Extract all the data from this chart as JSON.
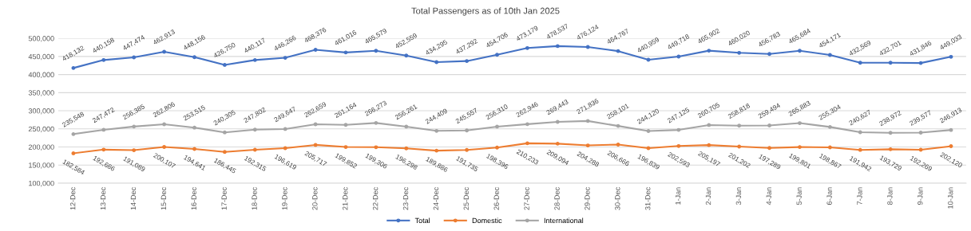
{
  "chart_data": {
    "type": "line",
    "title": "Total Passengers as of 10th Jan 2025",
    "categories": [
      "12-Dec",
      "13-Dec",
      "14-Dec",
      "15-Dec",
      "16-Dec",
      "17-Dec",
      "18-Dec",
      "19-Dec",
      "20-Dec",
      "21-Dec",
      "22-Dec",
      "23-Dec",
      "24-Dec",
      "25-Dec",
      "26-Dec",
      "27-Dec",
      "28-Dec",
      "29-Dec",
      "30-Dec",
      "31-Dec",
      "1-Jan",
      "2-Jan",
      "3-Jan",
      "4-Jan",
      "5-Jan",
      "6-Jan",
      "7-Jan",
      "8-Jan",
      "9-Jan",
      "10-Jan"
    ],
    "series": [
      {
        "name": "Total",
        "color": "#4472c4",
        "values": [
          418132,
          440158,
          447474,
          462913,
          448156,
          426750,
          440117,
          446266,
          468376,
          461016,
          465579,
          452559,
          434295,
          437292,
          454706,
          473179,
          478537,
          476124,
          464767,
          440959,
          449718,
          465902,
          460020,
          456783,
          465684,
          454171,
          432569,
          432701,
          431846,
          449033
        ],
        "value_labels": [
          "418,132",
          "440,158",
          "447,474",
          "462,913",
          "448,156",
          "426,750",
          "440,117",
          "446,266",
          "468,376",
          "461,016",
          "465,579",
          "452,559",
          "434,295",
          "437,292",
          "454,706",
          "473,179",
          "478,537",
          "476,124",
          "464,767",
          "440,959",
          "449,718",
          "465,902",
          "460,020",
          "456,783",
          "465,684",
          "454,171",
          "432,569",
          "432,701",
          "431,846",
          "449,033"
        ]
      },
      {
        "name": "Domestic",
        "color": "#ed7d31",
        "values": [
          182584,
          192686,
          191089,
          200107,
          194641,
          186445,
          192315,
          196619,
          205717,
          199852,
          199306,
          196298,
          189886,
          191735,
          198396,
          210233,
          209094,
          204288,
          206666,
          196839,
          202593,
          205197,
          201202,
          197289,
          199801,
          198867,
          191942,
          193729,
          192269,
          202120
        ],
        "value_labels": [
          "182,584",
          "192,686",
          "191,089",
          "200,107",
          "194,641",
          "186,445",
          "192,315",
          "196,619",
          "205,717",
          "199,852",
          "199,306",
          "196,298",
          "189,886",
          "191,735",
          "198,396",
          "210,233",
          "209,094",
          "204,288",
          "206,666",
          "196,839",
          "202,593",
          "205,197",
          "201,202",
          "197,289",
          "199,801",
          "198,867",
          "191,942",
          "193,729",
          "192,269",
          "202,120"
        ]
      },
      {
        "name": "International",
        "color": "#a5a5a5",
        "values": [
          235548,
          247472,
          256385,
          262806,
          253515,
          240305,
          247802,
          249647,
          262659,
          261164,
          266273,
          256261,
          244409,
          245557,
          256310,
          262946,
          269443,
          271836,
          258101,
          244120,
          247125,
          260705,
          258818,
          259494,
          265883,
          255304,
          240627,
          238972,
          239577,
          246913
        ],
        "value_labels": [
          "235,548",
          "247,472",
          "256,385",
          "262,806",
          "253,515",
          "240,305",
          "247,802",
          "249,647",
          "262,659",
          "261,164",
          "266,273",
          "256,261",
          "244,409",
          "245,557",
          "256,310",
          "262,946",
          "269,443",
          "271,836",
          "258,101",
          "244,120",
          "247,125",
          "260,705",
          "258,818",
          "259,494",
          "265,883",
          "255,304",
          "240,627",
          "238,972",
          "239,577",
          "246,913"
        ]
      }
    ],
    "ylim": [
      100000,
      500000
    ],
    "yticks": [
      {
        "value": 100000,
        "label": "100,000"
      },
      {
        "value": 150000,
        "label": "150,000"
      },
      {
        "value": 200000,
        "label": "200,000"
      },
      {
        "value": 250000,
        "label": "250,000"
      },
      {
        "value": 300000,
        "label": "300,000"
      },
      {
        "value": 350000,
        "label": "350,000"
      },
      {
        "value": 400000,
        "label": "400,000"
      },
      {
        "value": 450000,
        "label": "450,000"
      },
      {
        "value": 500000,
        "label": "500,000"
      }
    ],
    "grid": "y",
    "legend": "bottom",
    "marker": "circle",
    "line_style": "solid"
  }
}
